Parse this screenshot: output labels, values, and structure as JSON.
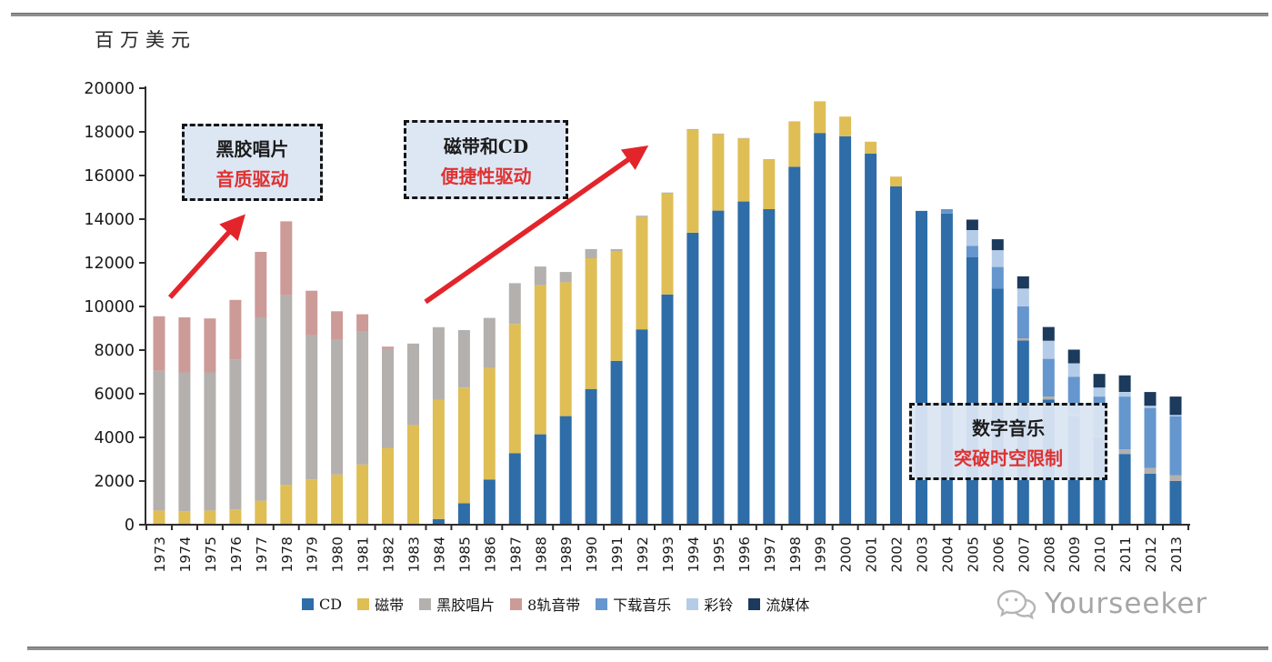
{
  "unit_label": "百万美元",
  "watermark": "Yourseeker",
  "colors": {
    "accent_red": "#e3242b",
    "callout_bg": "#dbe5f3",
    "axis": "#2e2e2e",
    "divider_gray": "#8f8f8f"
  },
  "chart_data": {
    "type": "bar",
    "stacked": true,
    "title": "",
    "xlabel": "",
    "ylabel": "百万美元",
    "ylim": [
      0,
      20000
    ],
    "ytick_step": 2000,
    "grid": false,
    "legend_position": "bottom",
    "categories": [
      "1973",
      "1974",
      "1975",
      "1976",
      "1977",
      "1978",
      "1979",
      "1980",
      "1981",
      "1982",
      "1983",
      "1984",
      "1985",
      "1986",
      "1987",
      "1988",
      "1989",
      "1990",
      "1991",
      "1992",
      "1993",
      "1994",
      "1995",
      "1996",
      "1997",
      "1998",
      "1999",
      "2000",
      "2001",
      "2002",
      "2003",
      "2004",
      "2005",
      "2006",
      "2007",
      "2008",
      "2009",
      "2010",
      "2011",
      "2012",
      "2013"
    ],
    "series": [
      {
        "name": "CD",
        "color": "#2e6da8",
        "values": [
          0,
          0,
          0,
          0,
          0,
          0,
          0,
          0,
          0,
          0,
          0,
          260,
          985,
          2065,
          3270,
          4140,
          4975,
          6220,
          7510,
          8950,
          10550,
          13380,
          14390,
          14810,
          14460,
          16400,
          17950,
          17800,
          17000,
          15500,
          14380,
          14260,
          12250,
          10820,
          8440,
          5730,
          4970,
          4000,
          3240,
          2340,
          2000
        ]
      },
      {
        "name": "磁带",
        "color": "#dfbe55",
        "values": [
          650,
          620,
          650,
          700,
          1100,
          1830,
          2070,
          2300,
          2760,
          3520,
          4560,
          5470,
          5300,
          5120,
          5925,
          6830,
          6135,
          5990,
          5000,
          5150,
          4620,
          4710,
          3500,
          2880,
          2265,
          2060,
          1450,
          900,
          550,
          450,
          0,
          0,
          0,
          0,
          0,
          0,
          0,
          0,
          0,
          0,
          0
        ]
      },
      {
        "name": "黑胶唱片",
        "color": "#b3b0ae",
        "values": [
          6400,
          6360,
          6330,
          6880,
          8400,
          8680,
          6600,
          6200,
          6090,
          4540,
          3740,
          3320,
          2630,
          2290,
          1870,
          860,
          470,
          420,
          120,
          60,
          50,
          40,
          30,
          25,
          25,
          20,
          0,
          0,
          0,
          0,
          0,
          0,
          0,
          0,
          100,
          140,
          140,
          80,
          210,
          260,
          270
        ]
      },
      {
        "name": "8轨音带",
        "color": "#cc9b97",
        "values": [
          2500,
          2520,
          2470,
          2720,
          3000,
          3390,
          2050,
          1280,
          790,
          100,
          0,
          0,
          0,
          0,
          0,
          0,
          0,
          0,
          0,
          0,
          0,
          0,
          0,
          0,
          0,
          0,
          0,
          0,
          0,
          0,
          0,
          0,
          0,
          0,
          0,
          0,
          0,
          0,
          0,
          0,
          0
        ]
      },
      {
        "name": "下载音乐",
        "color": "#6596ce",
        "values": [
          0,
          0,
          0,
          0,
          0,
          0,
          0,
          0,
          0,
          0,
          0,
          0,
          0,
          0,
          0,
          0,
          0,
          0,
          0,
          0,
          0,
          0,
          0,
          0,
          0,
          0,
          0,
          0,
          0,
          0,
          0,
          200,
          520,
          990,
          1460,
          1730,
          1660,
          1790,
          2420,
          2750,
          2700
        ]
      },
      {
        "name": "彩铃",
        "color": "#b4cce8",
        "values": [
          0,
          0,
          0,
          0,
          0,
          0,
          0,
          0,
          0,
          0,
          0,
          0,
          0,
          0,
          0,
          0,
          0,
          0,
          0,
          0,
          0,
          0,
          0,
          0,
          0,
          0,
          0,
          0,
          0,
          0,
          0,
          0,
          730,
          770,
          820,
          830,
          625,
          420,
          210,
          100,
          60
        ]
      },
      {
        "name": "流媒体",
        "color": "#1b3a5c",
        "values": [
          0,
          0,
          0,
          0,
          0,
          0,
          0,
          0,
          0,
          0,
          0,
          0,
          0,
          0,
          0,
          0,
          0,
          0,
          0,
          0,
          0,
          0,
          0,
          0,
          0,
          0,
          0,
          0,
          0,
          0,
          0,
          0,
          480,
          500,
          560,
          630,
          625,
          620,
          760,
          630,
          840
        ]
      }
    ],
    "annotations": [
      {
        "line1": "黑胶唱片",
        "line2": "音质驱动"
      },
      {
        "line1": "磁带和CD",
        "line2": "便捷性驱动"
      },
      {
        "line1": "数字音乐",
        "line2": "突破时空限制"
      }
    ]
  }
}
